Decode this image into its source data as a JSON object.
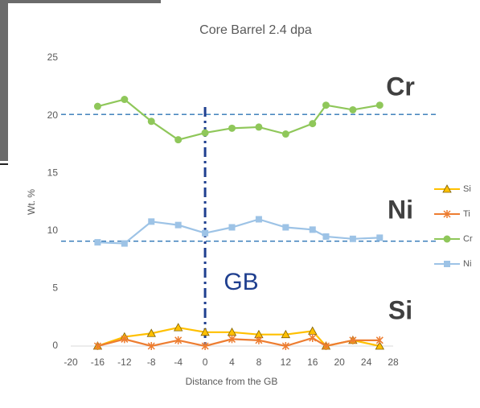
{
  "chart_data": {
    "type": "line",
    "title": "Core Barrel 2.4 dpa",
    "x_label": "Distance from the GB",
    "y_label": "Wt. %",
    "x": [
      -16,
      -12,
      -8,
      -4,
      0,
      4,
      8,
      12,
      16,
      18,
      22,
      26
    ],
    "series": [
      {
        "name": "Si",
        "color": "#ffc000",
        "marker": "triangle",
        "values": [
          0,
          0.8,
          1.1,
          1.6,
          1.2,
          1.2,
          1.0,
          1.0,
          1.3,
          0,
          0.5,
          0
        ]
      },
      {
        "name": "Ti",
        "color": "#ed7d31",
        "marker": "star",
        "values": [
          0,
          0.6,
          0,
          0.5,
          0,
          0.6,
          0.5,
          0,
          0.7,
          0,
          0.5,
          0.5
        ]
      },
      {
        "name": "Cr",
        "color": "#8fc75a",
        "marker": "circle",
        "values": [
          20.8,
          21.4,
          19.5,
          17.9,
          18.5,
          18.9,
          19.0,
          18.4,
          19.3,
          20.9,
          20.5,
          20.9
        ]
      },
      {
        "name": "Ni",
        "color": "#9dc3e6",
        "marker": "square",
        "values": [
          9.0,
          8.9,
          10.8,
          10.5,
          9.8,
          10.3,
          11.0,
          10.3,
          10.1,
          9.5,
          9.3,
          9.4
        ]
      }
    ],
    "xlim": [
      -20,
      28
    ],
    "xticks": [
      -20,
      -16,
      -12,
      -8,
      -4,
      0,
      4,
      8,
      12,
      16,
      20,
      24,
      28
    ],
    "ylim": [
      0,
      25
    ],
    "yticks": [
      0,
      5,
      10,
      15,
      20,
      25
    ],
    "hlines": [
      20.1,
      9.1
    ],
    "vlines": [
      0
    ],
    "annotations": [
      "Cr",
      "Ni",
      "GB",
      "Si"
    ],
    "legend": "right"
  }
}
